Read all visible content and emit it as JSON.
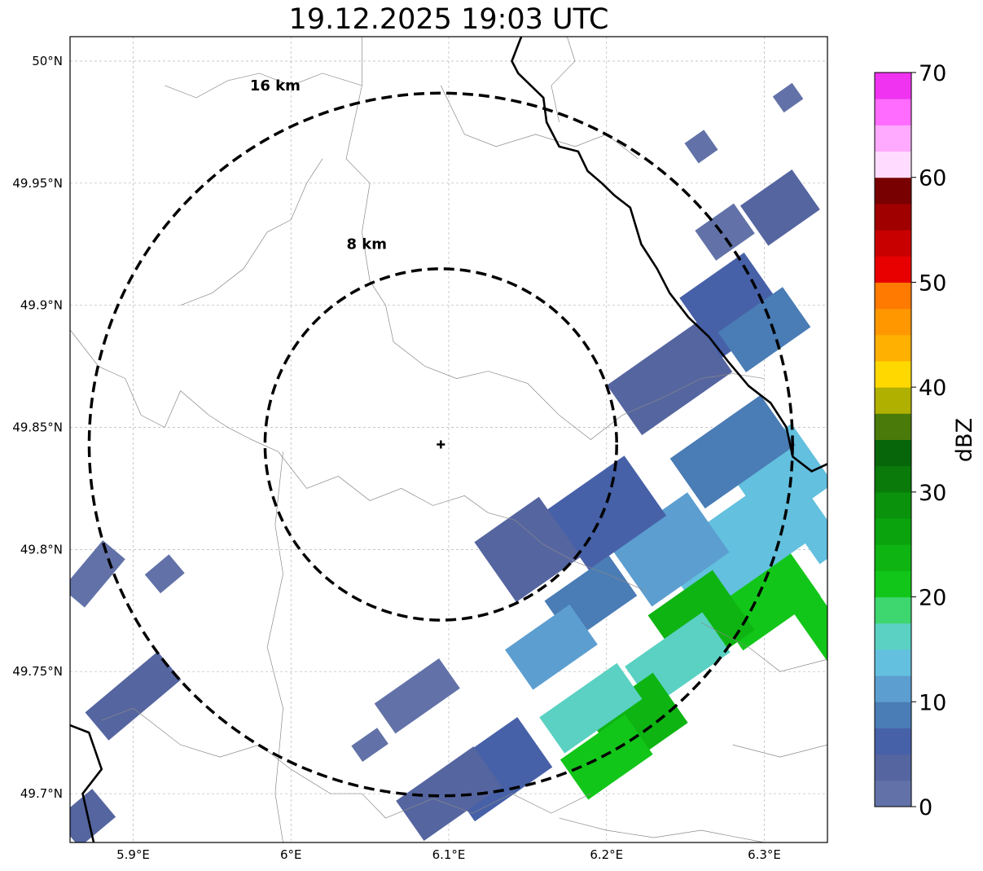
{
  "title": "19.12.2025 19:03 UTC",
  "map": {
    "lon_range": [
      5.86,
      6.34
    ],
    "lat_range": [
      49.68,
      50.01
    ],
    "lon_ticks": [
      {
        "value": 5.9,
        "label": "5.9°E"
      },
      {
        "value": 6.0,
        "label": "6°E"
      },
      {
        "value": 6.1,
        "label": "6.1°E"
      },
      {
        "value": 6.2,
        "label": "6.2°E"
      },
      {
        "value": 6.3,
        "label": "6.3°E"
      }
    ],
    "lat_ticks": [
      {
        "value": 50.0,
        "label": "50°N"
      },
      {
        "value": 49.95,
        "label": "49.95°N"
      },
      {
        "value": 49.9,
        "label": "49.9°N"
      },
      {
        "value": 49.85,
        "label": "49.85°N"
      },
      {
        "value": 49.8,
        "label": "49.8°N"
      },
      {
        "value": 49.75,
        "label": "49.75°N"
      },
      {
        "value": 49.7,
        "label": "49.7°N"
      }
    ],
    "gridlines": true,
    "radar_site": {
      "lon": 6.095,
      "lat": 49.843
    },
    "range_rings": [
      {
        "label": "8 km",
        "radius_km": 8,
        "label_lon": 6.048,
        "label_lat": 49.923
      },
      {
        "label": "16 km",
        "radius_km": 16,
        "label_lon": 5.99,
        "label_lat": 49.988
      }
    ],
    "borders": [
      [
        [
          6.146,
          50.01
        ],
        [
          6.14,
          50.0
        ],
        [
          6.144,
          49.995
        ],
        [
          6.16,
          49.985
        ],
        [
          6.162,
          49.975
        ],
        [
          6.17,
          49.965
        ],
        [
          6.182,
          49.963
        ],
        [
          6.188,
          49.955
        ],
        [
          6.197,
          49.95
        ],
        [
          6.205,
          49.945
        ],
        [
          6.215,
          49.94
        ],
        [
          6.222,
          49.925
        ],
        [
          6.232,
          49.915
        ],
        [
          6.24,
          49.905
        ],
        [
          6.252,
          49.895
        ],
        [
          6.265,
          49.887
        ],
        [
          6.277,
          49.877
        ],
        [
          6.29,
          49.867
        ],
        [
          6.304,
          49.86
        ],
        [
          6.314,
          49.85
        ],
        [
          6.318,
          49.838
        ],
        [
          6.33,
          49.832
        ],
        [
          6.34,
          49.835
        ]
      ],
      [
        [
          5.86,
          49.728
        ],
        [
          5.872,
          49.725
        ],
        [
          5.88,
          49.71
        ],
        [
          5.868,
          49.7
        ],
        [
          5.875,
          49.68
        ]
      ]
    ],
    "admin_lines": [
      [
        [
          5.86,
          49.89
        ],
        [
          5.878,
          49.875
        ],
        [
          5.895,
          49.87
        ],
        [
          5.905,
          49.855
        ],
        [
          5.92,
          49.85
        ],
        [
          5.93,
          49.865
        ],
        [
          5.948,
          49.855
        ],
        [
          5.96,
          49.85
        ],
        [
          5.975,
          49.845
        ],
        [
          5.992,
          49.84
        ]
      ],
      [
        [
          5.992,
          49.84
        ],
        [
          6.01,
          49.825
        ],
        [
          6.03,
          49.83
        ],
        [
          6.05,
          49.82
        ],
        [
          6.07,
          49.825
        ],
        [
          6.09,
          49.818
        ],
        [
          6.11,
          49.822
        ],
        [
          6.125,
          49.815
        ],
        [
          6.142,
          49.812
        ],
        [
          6.16,
          49.802
        ],
        [
          6.18,
          49.795
        ],
        [
          6.2,
          49.79
        ],
        [
          6.225,
          49.783
        ]
      ],
      [
        [
          6.045,
          50.01
        ],
        [
          6.045,
          49.99
        ],
        [
          6.035,
          49.96
        ],
        [
          6.05,
          49.95
        ],
        [
          6.045,
          49.93
        ],
        [
          6.05,
          49.91
        ],
        [
          6.06,
          49.9
        ],
        [
          6.065,
          49.885
        ],
        [
          6.085,
          49.875
        ],
        [
          6.105,
          49.87
        ],
        [
          6.125,
          49.873
        ],
        [
          6.15,
          49.868
        ],
        [
          6.17,
          49.855
        ],
        [
          6.19,
          49.845
        ],
        [
          6.21,
          49.855
        ],
        [
          6.235,
          49.862
        ],
        [
          6.26,
          49.87
        ],
        [
          6.28,
          49.872
        ],
        [
          6.3,
          49.87
        ]
      ],
      [
        [
          5.92,
          49.99
        ],
        [
          5.94,
          49.985
        ],
        [
          5.96,
          49.992
        ],
        [
          5.98,
          49.995
        ],
        [
          6.0,
          49.99
        ],
        [
          6.02,
          49.995
        ],
        [
          6.045,
          49.99
        ]
      ],
      [
        [
          6.095,
          49.99
        ],
        [
          6.11,
          49.97
        ],
        [
          6.13,
          49.965
        ],
        [
          6.155,
          49.97
        ],
        [
          6.18,
          49.965
        ],
        [
          6.2,
          49.97
        ],
        [
          6.22,
          49.96
        ]
      ],
      [
        [
          5.995,
          49.84
        ],
        [
          5.99,
          49.81
        ],
        [
          5.995,
          49.79
        ],
        [
          5.985,
          49.76
        ],
        [
          5.995,
          49.735
        ],
        [
          5.99,
          49.7
        ],
        [
          5.995,
          49.68
        ]
      ],
      [
        [
          5.88,
          49.73
        ],
        [
          5.9,
          49.735
        ],
        [
          5.93,
          49.72
        ],
        [
          5.955,
          49.715
        ],
        [
          5.98,
          49.72
        ],
        [
          6.0,
          49.71
        ],
        [
          6.025,
          49.7
        ],
        [
          6.045,
          49.7
        ],
        [
          6.06,
          49.69
        ],
        [
          6.09,
          49.698
        ],
        [
          6.115,
          49.692
        ],
        [
          6.14,
          49.7
        ],
        [
          6.165,
          49.692
        ],
        [
          6.19,
          49.7
        ]
      ],
      [
        [
          6.17,
          49.69
        ],
        [
          6.2,
          49.685
        ],
        [
          6.23,
          49.682
        ],
        [
          6.26,
          49.685
        ],
        [
          6.3,
          49.68
        ]
      ],
      [
        [
          6.26,
          49.77
        ],
        [
          6.29,
          49.76
        ],
        [
          6.31,
          49.75
        ],
        [
          6.34,
          49.755
        ]
      ],
      [
        [
          6.28,
          49.72
        ],
        [
          6.31,
          49.715
        ],
        [
          6.34,
          49.72
        ]
      ],
      [
        [
          5.93,
          49.9
        ],
        [
          5.95,
          49.905
        ],
        [
          5.97,
          49.915
        ],
        [
          5.985,
          49.93
        ],
        [
          6.0,
          49.935
        ],
        [
          6.01,
          49.95
        ],
        [
          6.02,
          49.96
        ]
      ],
      [
        [
          6.175,
          50.01
        ],
        [
          6.18,
          50.0
        ],
        [
          6.165,
          49.99
        ],
        [
          6.17,
          49.975
        ]
      ]
    ],
    "echoes": [
      {
        "lon": 6.3,
        "lat": 49.78,
        "w": 0.06,
        "h": 0.025,
        "rot": -35,
        "dbz": 22
      },
      {
        "lon": 6.28,
        "lat": 49.8,
        "w": 0.08,
        "h": 0.03,
        "rot": -35,
        "dbz": 14
      },
      {
        "lon": 6.26,
        "lat": 49.77,
        "w": 0.05,
        "h": 0.03,
        "rot": -35,
        "dbz": 24
      },
      {
        "lon": 6.245,
        "lat": 49.755,
        "w": 0.06,
        "h": 0.02,
        "rot": -35,
        "dbz": 17
      },
      {
        "lon": 6.22,
        "lat": 49.73,
        "w": 0.05,
        "h": 0.025,
        "rot": -35,
        "dbz": 24
      },
      {
        "lon": 6.2,
        "lat": 49.715,
        "w": 0.05,
        "h": 0.02,
        "rot": -35,
        "dbz": 21
      },
      {
        "lon": 6.19,
        "lat": 49.735,
        "w": 0.06,
        "h": 0.018,
        "rot": -35,
        "dbz": 16
      },
      {
        "lon": 6.31,
        "lat": 49.83,
        "w": 0.05,
        "h": 0.03,
        "rot": -35,
        "dbz": 13
      },
      {
        "lon": 6.28,
        "lat": 49.84,
        "w": 0.07,
        "h": 0.025,
        "rot": -35,
        "dbz": 8
      },
      {
        "lon": 6.24,
        "lat": 49.8,
        "w": 0.06,
        "h": 0.03,
        "rot": -35,
        "dbz": 10
      },
      {
        "lon": 6.2,
        "lat": 49.815,
        "w": 0.06,
        "h": 0.03,
        "rot": -35,
        "dbz": 5
      },
      {
        "lon": 6.19,
        "lat": 49.78,
        "w": 0.05,
        "h": 0.02,
        "rot": -35,
        "dbz": 9
      },
      {
        "lon": 6.165,
        "lat": 49.76,
        "w": 0.05,
        "h": 0.02,
        "rot": -35,
        "dbz": 11
      },
      {
        "lon": 6.15,
        "lat": 49.8,
        "w": 0.05,
        "h": 0.03,
        "rot": -35,
        "dbz": 3
      },
      {
        "lon": 6.13,
        "lat": 49.71,
        "w": 0.06,
        "h": 0.025,
        "rot": -35,
        "dbz": 6
      },
      {
        "lon": 6.1,
        "lat": 49.7,
        "w": 0.06,
        "h": 0.02,
        "rot": -35,
        "dbz": 4
      },
      {
        "lon": 6.08,
        "lat": 49.74,
        "w": 0.05,
        "h": 0.015,
        "rot": -35,
        "dbz": 2
      },
      {
        "lon": 6.24,
        "lat": 49.87,
        "w": 0.07,
        "h": 0.025,
        "rot": -35,
        "dbz": 3
      },
      {
        "lon": 6.28,
        "lat": 49.9,
        "w": 0.05,
        "h": 0.03,
        "rot": -35,
        "dbz": 6
      },
      {
        "lon": 6.3,
        "lat": 49.89,
        "w": 0.05,
        "h": 0.02,
        "rot": -35,
        "dbz": 8
      },
      {
        "lon": 6.31,
        "lat": 49.94,
        "w": 0.04,
        "h": 0.02,
        "rot": -35,
        "dbz": 3
      },
      {
        "lon": 6.275,
        "lat": 49.93,
        "w": 0.03,
        "h": 0.015,
        "rot": -35,
        "dbz": 2
      },
      {
        "lon": 6.26,
        "lat": 49.965,
        "w": 0.015,
        "h": 0.01,
        "rot": -35,
        "dbz": 2
      },
      {
        "lon": 6.315,
        "lat": 49.985,
        "w": 0.015,
        "h": 0.008,
        "rot": -35,
        "dbz": 2
      },
      {
        "lon": 5.875,
        "lat": 49.79,
        "w": 0.04,
        "h": 0.012,
        "rot": -50,
        "dbz": 2
      },
      {
        "lon": 5.9,
        "lat": 49.74,
        "w": 0.06,
        "h": 0.015,
        "rot": -40,
        "dbz": 3
      },
      {
        "lon": 5.87,
        "lat": 49.69,
        "w": 0.03,
        "h": 0.015,
        "rot": -40,
        "dbz": 4
      },
      {
        "lon": 5.92,
        "lat": 49.79,
        "w": 0.02,
        "h": 0.01,
        "rot": -40,
        "dbz": 2
      },
      {
        "lon": 6.05,
        "lat": 49.72,
        "w": 0.02,
        "h": 0.008,
        "rot": -35,
        "dbz": 2
      },
      {
        "lon": 6.335,
        "lat": 49.77,
        "w": 0.02,
        "h": 0.03,
        "rot": -35,
        "dbz": 20
      },
      {
        "lon": 6.33,
        "lat": 49.81,
        "w": 0.02,
        "h": 0.03,
        "rot": -35,
        "dbz": 14
      }
    ]
  },
  "colorbar": {
    "title": "dBZ",
    "min": 0,
    "max": 70,
    "tick_labels": [
      "0",
      "10",
      "20",
      "30",
      "40",
      "50",
      "60",
      "70"
    ],
    "colors": [
      "#6272a8",
      "#5565a0",
      "#4761a8",
      "#4a7cb5",
      "#5c9ed0",
      "#63c0de",
      "#5ad1c2",
      "#3ed66e",
      "#12c619",
      "#0eb412",
      "#0aa30e",
      "#0b920d",
      "#0a7a0b",
      "#07660a",
      "#4a7a0a",
      "#b0b000",
      "#ffd800",
      "#ffb000",
      "#ff9800",
      "#ff7a00",
      "#e80000",
      "#c80000",
      "#a00000",
      "#780000",
      "#ffdcff",
      "#ffaaff",
      "#ff6cff",
      "#f033f0"
    ]
  }
}
